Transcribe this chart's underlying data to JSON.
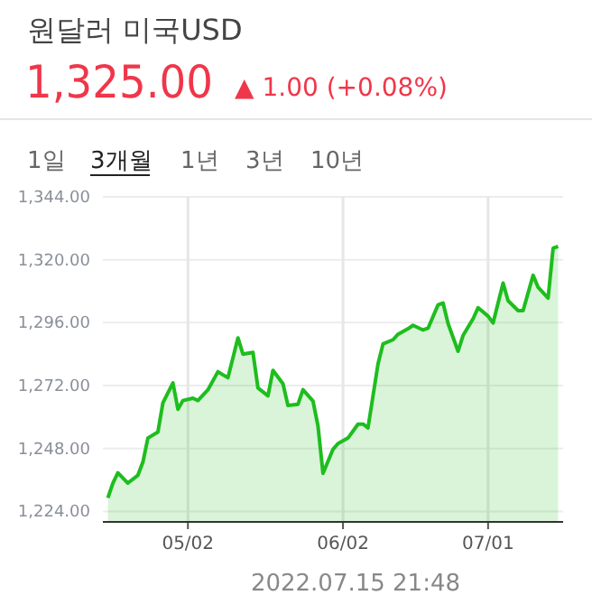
{
  "chart_data": {
    "type": "area",
    "title": "원달러 미국USD",
    "subtitle": "1,325.00",
    "annotations": [
      "▲ 1.00 (+0.08%)",
      "1일",
      "3개월",
      "1년",
      "3년",
      "10년",
      "2022.07.15 21:48"
    ],
    "x": [
      "2022-04-16",
      "2022-04-17",
      "2022-04-18",
      "2022-04-20",
      "2022-04-22",
      "2022-04-23",
      "2022-04-24",
      "2022-04-26",
      "2022-04-27",
      "2022-04-29",
      "2022-04-30",
      "2022-05-01",
      "2022-05-03",
      "2022-05-04",
      "2022-05-06",
      "2022-05-08",
      "2022-05-09",
      "2022-05-10",
      "2022-05-12",
      "2022-05-13",
      "2022-05-15",
      "2022-05-16",
      "2022-05-18",
      "2022-05-19",
      "2022-05-21",
      "2022-05-22",
      "2022-05-24",
      "2022-05-25",
      "2022-05-27",
      "2022-05-28",
      "2022-05-29",
      "2022-05-31",
      "2022-06-01",
      "2022-06-03",
      "2022-06-05",
      "2022-06-06",
      "2022-06-07",
      "2022-06-09",
      "2022-06-10",
      "2022-06-12",
      "2022-06-13",
      "2022-06-15",
      "2022-06-16",
      "2022-06-18",
      "2022-06-19",
      "2022-06-21",
      "2022-06-22",
      "2022-06-23",
      "2022-06-25",
      "2022-06-26",
      "2022-06-28",
      "2022-06-29",
      "2022-07-01",
      "2022-07-02",
      "2022-07-04",
      "2022-07-05",
      "2022-07-07",
      "2022-07-08",
      "2022-07-10",
      "2022-07-11",
      "2022-07-13",
      "2022-07-14",
      "2022-07-15"
    ],
    "series": [
      {
        "color": "#1ebd1e",
        "values": [
          1229.2,
          1234.8,
          1238.7,
          1234.8,
          1237.8,
          1242.8,
          1252.0,
          1254.3,
          1265.4,
          1273.0,
          1263.0,
          1266.3,
          1267.2,
          1266.3,
          1270.4,
          1277.3,
          1276.1,
          1275.0,
          1290.2,
          1284.0,
          1284.7,
          1271.1,
          1268.1,
          1277.8,
          1272.7,
          1264.4,
          1264.9,
          1270.4,
          1266.1,
          1256.6,
          1238.5,
          1247.7,
          1249.9,
          1252.0,
          1257.3,
          1257.3,
          1255.9,
          1280.3,
          1287.9,
          1289.5,
          1291.6,
          1293.7,
          1295.0,
          1293.2,
          1293.9,
          1302.8,
          1303.5,
          1295.7,
          1285.1,
          1291.1,
          1297.5,
          1301.7,
          1298.5,
          1295.9,
          1311.1,
          1304.4,
          1300.6,
          1300.6,
          1314.1,
          1309.5,
          1305.4,
          1324.4,
          1325.1
        ]
      }
    ],
    "xlim": [
      "2022-04-15",
      "2022-07-16"
    ],
    "xticks": [
      {
        "value": "2022-05-02",
        "label": "05/02"
      },
      {
        "value": "2022-06-02",
        "label": "06/02"
      },
      {
        "value": "2022-07-01",
        "label": "07/01"
      }
    ],
    "ylim": [
      1220,
      1344
    ],
    "yticks": [
      {
        "value": 1224,
        "label": "1,224.00"
      },
      {
        "value": 1248,
        "label": "1,248.00"
      },
      {
        "value": 1272,
        "label": "1,272.00"
      },
      {
        "value": 1296,
        "label": "1,296.00"
      },
      {
        "value": 1320,
        "label": "1,320.00"
      },
      {
        "value": 1344,
        "label": "1,344.00"
      }
    ],
    "grid": true
  }
}
